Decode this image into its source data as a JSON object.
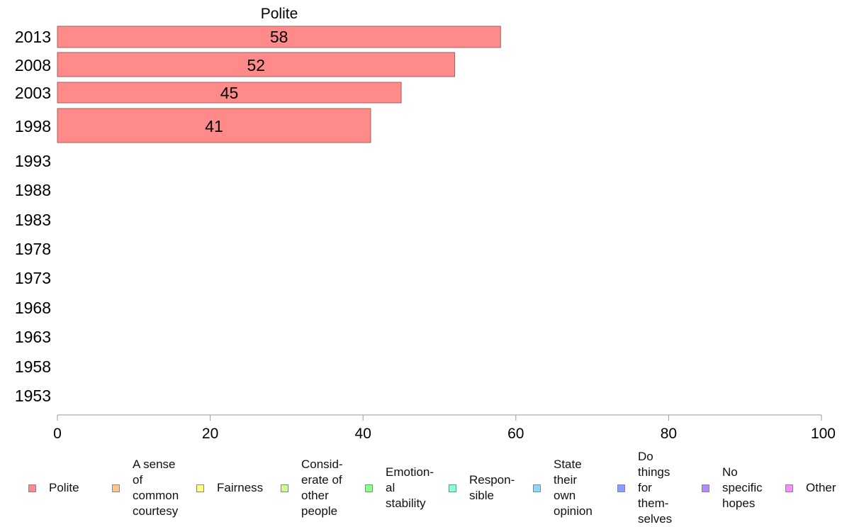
{
  "chart_data": {
    "type": "bar",
    "orientation": "horizontal",
    "title": "Polite",
    "categories": [
      "2013",
      "2008",
      "2003",
      "1998",
      "1993",
      "1988",
      "1983",
      "1978",
      "1973",
      "1968",
      "1963",
      "1958",
      "1953"
    ],
    "series": [
      {
        "name": "Polite",
        "values": [
          58,
          52,
          45,
          41,
          null,
          null,
          null,
          null,
          null,
          null,
          null,
          null,
          null
        ]
      }
    ],
    "data_labels": [
      "58",
      "52",
      "45",
      "41"
    ],
    "xlim": [
      0,
      100
    ],
    "x_ticks": [
      0,
      20,
      40,
      60,
      80,
      100
    ],
    "xlabel": "",
    "ylabel": "",
    "grid": false,
    "legend_position": "bottom",
    "bar_color": "#ff8a8a"
  },
  "legend": [
    {
      "label": "Polite",
      "color": "#ff8a8a"
    },
    {
      "label": "A sense\nof\ncommon\ncourtesy",
      "color": "#ffc88a"
    },
    {
      "label": "Fairness",
      "color": "#ffff8a"
    },
    {
      "label": "Consid-\nerate of\nother\npeople",
      "color": "#c8ff8a"
    },
    {
      "label": "Emotion-\nal\nstability",
      "color": "#8aff8a"
    },
    {
      "label": "Respon-\nsible",
      "color": "#8affd8"
    },
    {
      "label": "State\ntheir\nown\nopinion",
      "color": "#8ad8ff"
    },
    {
      "label": "Do\nthings\nfor\nthem-\nselves",
      "color": "#8a9cff"
    },
    {
      "label": "No\nspecific\nhopes",
      "color": "#b28aff"
    },
    {
      "label": "Other",
      "color": "#ff8aff"
    }
  ]
}
